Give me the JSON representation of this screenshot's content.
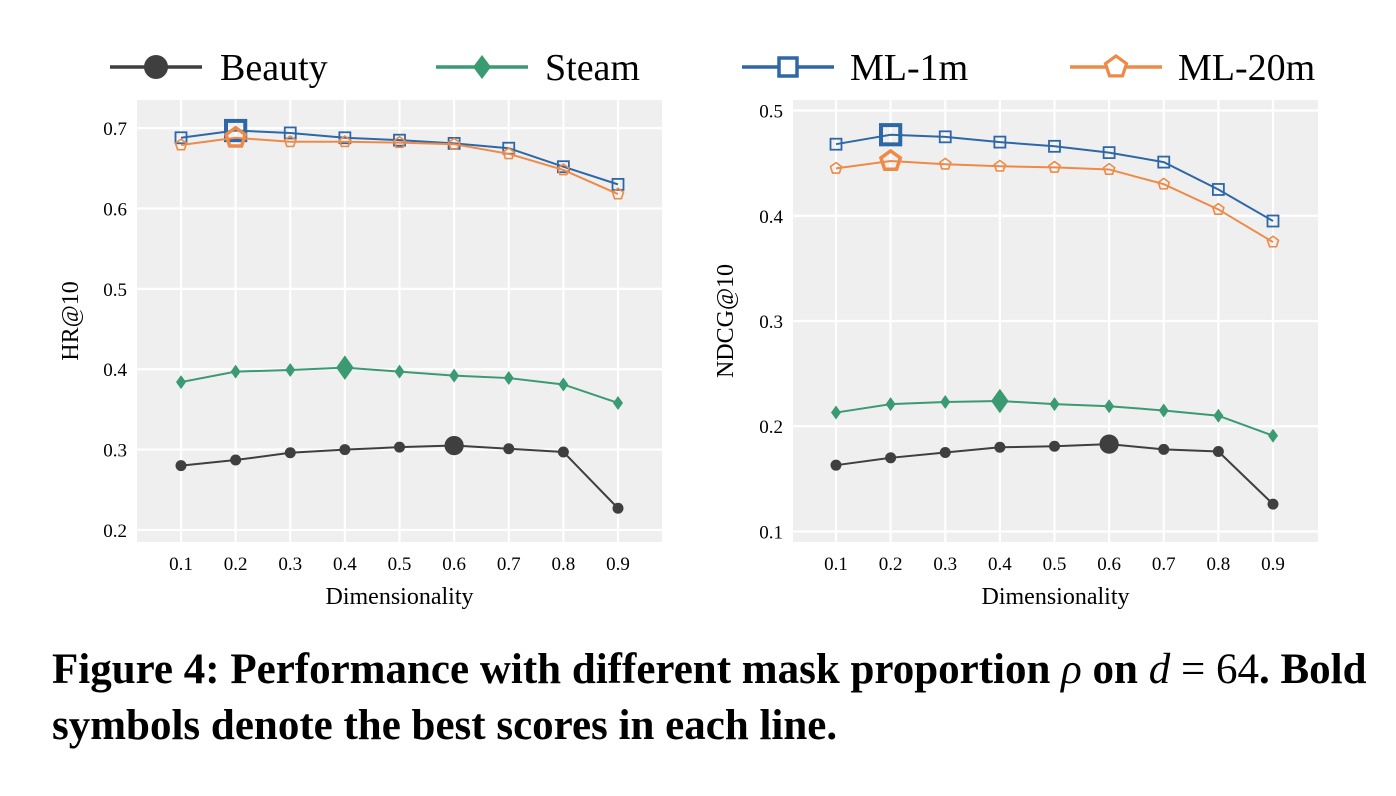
{
  "legend": [
    {
      "name": "Beauty",
      "color": "#3f3f3f",
      "marker": "circle"
    },
    {
      "name": "Steam",
      "color": "#3a9a72",
      "marker": "diamond"
    },
    {
      "name": "ML-1m",
      "color": "#2e67a6",
      "marker": "square-open"
    },
    {
      "name": "ML-20m",
      "color": "#ee8a48",
      "marker": "pentagon-open"
    }
  ],
  "caption": {
    "prefix": "Figure 4: Performance with different mask proportion",
    "rho": "ρ",
    "on": "on",
    "d": "d",
    "eq": "= 64",
    "suffix": ". Bold symbols denote the best scores in each line."
  },
  "chart_data": [
    {
      "type": "line",
      "xlabel": "Dimensionality",
      "ylabel": "HR@10",
      "x": [
        0.1,
        0.2,
        0.3,
        0.4,
        0.5,
        0.6,
        0.7,
        0.8,
        0.9
      ],
      "ylim": [
        0.185,
        0.735
      ],
      "yticks": [
        0.2,
        0.3,
        0.4,
        0.5,
        0.6,
        0.7
      ],
      "grid": true,
      "series": [
        {
          "name": "Beauty",
          "values": [
            0.28,
            0.287,
            0.296,
            0.3,
            0.303,
            0.305,
            0.301,
            0.297,
            0.227
          ],
          "best_index": 5
        },
        {
          "name": "Steam",
          "values": [
            0.384,
            0.397,
            0.399,
            0.402,
            0.397,
            0.392,
            0.389,
            0.381,
            0.358
          ],
          "best_index": 3
        },
        {
          "name": "ML-1m",
          "values": [
            0.688,
            0.697,
            0.694,
            0.688,
            0.685,
            0.681,
            0.675,
            0.652,
            0.63
          ],
          "best_index": 1
        },
        {
          "name": "ML-20m",
          "values": [
            0.679,
            0.688,
            0.683,
            0.683,
            0.682,
            0.68,
            0.668,
            0.648,
            0.618
          ],
          "best_index": 1
        }
      ]
    },
    {
      "type": "line",
      "xlabel": "Dimensionality",
      "ylabel": "NDCG@10",
      "x": [
        0.1,
        0.2,
        0.3,
        0.4,
        0.5,
        0.6,
        0.7,
        0.8,
        0.9
      ],
      "ylim": [
        0.09,
        0.51
      ],
      "yticks": [
        0.1,
        0.2,
        0.3,
        0.4,
        0.5
      ],
      "grid": true,
      "series": [
        {
          "name": "Beauty",
          "values": [
            0.163,
            0.17,
            0.175,
            0.18,
            0.181,
            0.183,
            0.178,
            0.176,
            0.126
          ],
          "best_index": 5
        },
        {
          "name": "Steam",
          "values": [
            0.213,
            0.221,
            0.223,
            0.224,
            0.221,
            0.219,
            0.215,
            0.21,
            0.191
          ],
          "best_index": 3
        },
        {
          "name": "ML-1m",
          "values": [
            0.468,
            0.477,
            0.475,
            0.47,
            0.466,
            0.46,
            0.451,
            0.425,
            0.395
          ],
          "best_index": 1
        },
        {
          "name": "ML-20m",
          "values": [
            0.445,
            0.452,
            0.449,
            0.447,
            0.446,
            0.444,
            0.43,
            0.406,
            0.375
          ],
          "best_index": 1
        }
      ]
    }
  ]
}
